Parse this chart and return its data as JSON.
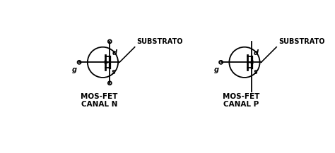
{
  "bg_color": "#ffffff",
  "line_color": "#000000",
  "title1": "MOS-FET\nCANAL N",
  "title2": "MOS-FET\nCANAL P",
  "substrato": "SUBSTRATO",
  "label_g": "g",
  "label_d": "d",
  "label_s": "s",
  "font_size_label": 7,
  "font_size_title": 7.5,
  "font_size_substrato": 7
}
